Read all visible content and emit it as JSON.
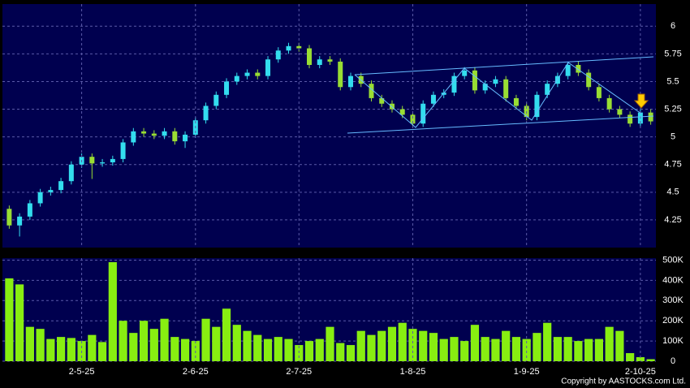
{
  "chart_data": [
    {
      "type": "candlestick",
      "open": [
        4.35,
        4.2,
        4.28,
        4.4,
        4.5,
        4.52,
        4.6,
        4.75,
        4.82,
        4.76,
        4.77,
        4.8,
        4.95,
        5.05,
        5.03,
        5.01,
        5.05,
        4.96,
        5.02,
        5.15,
        5.28,
        5.38,
        5.5,
        5.55,
        5.58,
        5.55,
        5.7,
        5.78,
        5.82,
        5.8,
        5.65,
        5.7,
        5.68,
        5.45,
        5.55,
        5.48,
        5.35,
        5.3,
        5.25,
        5.2,
        5.12,
        5.3,
        5.38,
        5.4,
        5.55,
        5.6,
        5.42,
        5.48,
        5.52,
        5.35,
        5.28,
        5.18,
        5.38,
        5.48,
        5.55,
        5.65,
        5.58,
        5.45,
        5.35,
        5.25,
        5.2,
        5.12,
        5.22
      ],
      "high": [
        4.38,
        4.31,
        4.43,
        4.53,
        4.55,
        4.63,
        4.78,
        4.85,
        4.85,
        4.8,
        4.83,
        4.98,
        5.08,
        5.08,
        5.06,
        5.08,
        5.08,
        5.05,
        5.18,
        5.31,
        5.41,
        5.53,
        5.58,
        5.61,
        5.61,
        5.73,
        5.81,
        5.85,
        5.85,
        5.83,
        5.73,
        5.73,
        5.71,
        5.58,
        5.58,
        5.51,
        5.38,
        5.33,
        5.28,
        5.23,
        5.33,
        5.41,
        5.43,
        5.58,
        5.63,
        5.63,
        5.51,
        5.55,
        5.55,
        5.38,
        5.31,
        5.41,
        5.51,
        5.58,
        5.68,
        5.68,
        5.61,
        5.48,
        5.38,
        5.28,
        5.23,
        5.25,
        5.25
      ],
      "low": [
        4.17,
        4.1,
        4.25,
        4.37,
        4.47,
        4.49,
        4.57,
        4.72,
        4.62,
        4.73,
        4.74,
        4.77,
        4.92,
        5.0,
        4.98,
        4.98,
        4.93,
        4.9,
        4.99,
        5.12,
        5.25,
        5.35,
        5.47,
        5.52,
        5.52,
        5.52,
        5.67,
        5.75,
        5.77,
        5.62,
        5.62,
        5.65,
        5.42,
        5.42,
        5.45,
        5.32,
        5.27,
        5.22,
        5.17,
        5.09,
        5.09,
        5.27,
        5.35,
        5.37,
        5.52,
        5.39,
        5.39,
        5.45,
        5.32,
        5.25,
        5.15,
        5.15,
        5.35,
        5.45,
        5.52,
        5.55,
        5.42,
        5.32,
        5.22,
        5.17,
        5.09,
        5.09,
        5.11
      ],
      "close": [
        4.2,
        4.28,
        4.4,
        4.5,
        4.52,
        4.6,
        4.75,
        4.82,
        4.76,
        4.77,
        4.8,
        4.95,
        5.05,
        5.03,
        5.01,
        5.05,
        4.96,
        5.02,
        5.15,
        5.28,
        5.38,
        5.5,
        5.55,
        5.58,
        5.55,
        5.7,
        5.78,
        5.82,
        5.8,
        5.65,
        5.7,
        5.68,
        5.45,
        5.55,
        5.48,
        5.35,
        5.3,
        5.25,
        5.2,
        5.12,
        5.3,
        5.38,
        5.4,
        5.55,
        5.6,
        5.42,
        5.48,
        5.52,
        5.35,
        5.28,
        5.18,
        5.38,
        5.48,
        5.55,
        5.65,
        5.58,
        5.45,
        5.35,
        5.25,
        5.2,
        5.12,
        5.22,
        5.14
      ],
      "up_color": "#33ddee",
      "down_color": "#99dd33",
      "ylim": [
        4.0,
        6.2
      ],
      "yticks": [
        4.25,
        4.5,
        4.75,
        5,
        5.25,
        5.5,
        5.75,
        6
      ],
      "grid": true
    },
    {
      "type": "bar",
      "categories": [
        null,
        null,
        null,
        null,
        null,
        null,
        null,
        "2-5-25",
        null,
        null,
        null,
        null,
        null,
        null,
        null,
        null,
        null,
        null,
        "2-6-25",
        null,
        null,
        null,
        null,
        null,
        null,
        null,
        null,
        null,
        "2-7-25",
        null,
        null,
        null,
        null,
        null,
        null,
        null,
        null,
        null,
        null,
        "1-8-25",
        null,
        null,
        null,
        null,
        null,
        null,
        null,
        null,
        null,
        null,
        "1-9-25",
        null,
        null,
        null,
        null,
        null,
        null,
        null,
        null,
        null,
        null,
        "2-10-25",
        null
      ],
      "values": [
        410000,
        380000,
        170000,
        160000,
        110000,
        120000,
        115000,
        100000,
        130000,
        95000,
        490000,
        200000,
        140000,
        200000,
        160000,
        210000,
        120000,
        110000,
        100000,
        210000,
        170000,
        260000,
        180000,
        150000,
        130000,
        110000,
        120000,
        110000,
        80000,
        100000,
        110000,
        170000,
        90000,
        80000,
        150000,
        130000,
        150000,
        170000,
        190000,
        160000,
        150000,
        140000,
        110000,
        120000,
        100000,
        180000,
        120000,
        110000,
        150000,
        120000,
        110000,
        140000,
        190000,
        120000,
        120000,
        100000,
        110000,
        110000,
        170000,
        150000,
        40000,
        20000,
        10000
      ],
      "color": "#88ee11",
      "ylim": [
        0,
        510000
      ],
      "yticks": [
        0,
        {
          "value": 100000,
          "label": "100K"
        },
        {
          "value": 200000,
          "label": "200K"
        },
        {
          "value": 300000,
          "label": "300K"
        },
        {
          "value": 400000,
          "label": "400K"
        },
        {
          "value": 500000,
          "label": "500K"
        }
      ],
      "grid": true
    }
  ],
  "footer": "Copyright by AASTOCKS.com Ltd."
}
